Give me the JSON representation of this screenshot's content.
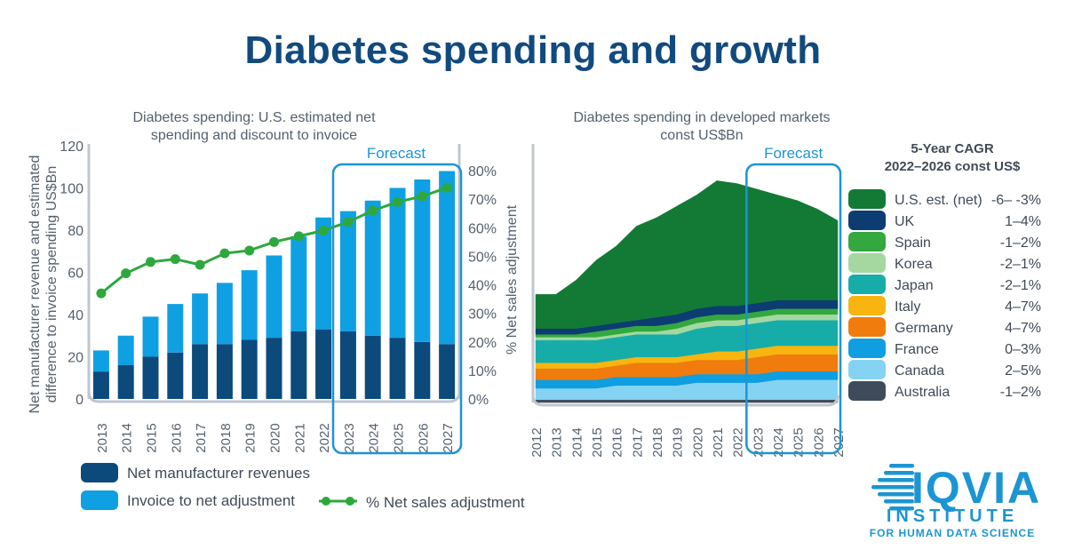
{
  "page": {
    "title": "Diabetes spending and growth"
  },
  "colors": {
    "title": "#114a7e",
    "axis": "#bfc6cd",
    "tick": "#55616d",
    "net": "#0c4a7c",
    "invoice": "#0fa0e3",
    "line": "#2ea83d",
    "forecast": "#1c95d3"
  },
  "chart_data": [
    {
      "type": "bar",
      "title": "Diabetes spending: U.S. estimated net spending and discount to invoice",
      "title_lines": [
        "Diabetes spending: U.S. estimated net",
        "spending and discount to invoice"
      ],
      "ylabel_lines": [
        "Net manufacturer revenue and estimated",
        "difference to invoice spending US$Bn"
      ],
      "y2label": "% Net sales adjustment",
      "categories": [
        "2013",
        "2014",
        "2015",
        "2016",
        "2017",
        "2018",
        "2019",
        "2020",
        "2021",
        "2022",
        "2023",
        "2024",
        "2025",
        "2026",
        "2027"
      ],
      "ylim": [
        0,
        120
      ],
      "yticks": [
        0,
        20,
        40,
        60,
        80,
        100,
        120
      ],
      "y2lim": [
        0,
        80
      ],
      "y2ticks": [
        "0%",
        "10%",
        "20%",
        "30%",
        "40%",
        "50%",
        "60%",
        "70%",
        "80%"
      ],
      "stacked": true,
      "series": [
        {
          "name": "Net manufacturer revenues",
          "values": [
            13,
            16,
            20,
            22,
            26,
            26,
            28,
            29,
            32,
            33,
            32,
            30,
            29,
            27,
            26
          ]
        },
        {
          "name": "Invoice to net adjustment",
          "values": [
            10,
            14,
            19,
            23,
            24,
            29,
            33,
            39,
            45,
            53,
            57,
            64,
            71,
            77,
            82
          ]
        }
      ],
      "line_series": {
        "name": "% Net sales adjustment",
        "values": [
          37,
          44,
          48,
          49,
          47,
          51,
          52,
          55,
          57,
          59,
          62,
          66,
          69,
          71,
          74
        ]
      },
      "forecast_label": "Forecast",
      "forecast_from": "2023",
      "legend": {
        "items": [
          {
            "label": "Net manufacturer revenues",
            "color": "#0c4a7c",
            "kind": "box"
          },
          {
            "label": "Invoice to net adjustment",
            "color": "#0fa0e3",
            "kind": "box"
          },
          {
            "label": "% Net sales adjustment",
            "color": "#2ea83d",
            "kind": "line"
          }
        ]
      }
    },
    {
      "type": "area",
      "title": "Diabetes spending in developed markets const US$Bn",
      "title_lines": [
        "Diabetes spending in developed markets",
        "const US$Bn"
      ],
      "x": [
        "2012",
        "2013",
        "2014",
        "2015",
        "2016",
        "2017",
        "2018",
        "2019",
        "2020",
        "2021",
        "2022",
        "2023",
        "2024",
        "2025",
        "2026",
        "2027"
      ],
      "ylim": [
        0,
        80
      ],
      "stacked": true,
      "series": [
        {
          "name": "Australia",
          "color": "#3f4b5a",
          "values": [
            1,
            1,
            1,
            1,
            1,
            1,
            1,
            1,
            1,
            1,
            1,
            1,
            1,
            1,
            1,
            1
          ]
        },
        {
          "name": "Canada",
          "color": "#85d3f3",
          "values": [
            4,
            4,
            4,
            4,
            5,
            5,
            5,
            5,
            6,
            6,
            6,
            6,
            7,
            7,
            7,
            7
          ]
        },
        {
          "name": "France",
          "color": "#0f9ee0",
          "values": [
            3,
            3,
            3,
            3,
            3,
            3,
            3,
            3,
            3,
            3,
            3,
            3,
            3,
            3,
            3,
            3
          ]
        },
        {
          "name": "Germany",
          "color": "#f07c0d",
          "values": [
            4,
            4,
            4,
            4,
            4,
            5,
            5,
            5,
            5,
            5,
            5,
            6,
            6,
            6,
            6,
            6
          ]
        },
        {
          "name": "Italy",
          "color": "#f8b50f",
          "values": [
            2,
            2,
            2,
            2,
            2,
            2,
            2,
            2,
            2,
            3,
            3,
            3,
            3,
            3,
            3,
            3
          ]
        },
        {
          "name": "Japan",
          "color": "#16ada9",
          "values": [
            8,
            8,
            8,
            8,
            8,
            8,
            8,
            8,
            9,
            9,
            9,
            9,
            9,
            9,
            9,
            9
          ]
        },
        {
          "name": "Korea",
          "color": "#a4d8a0",
          "values": [
            1,
            1,
            1,
            1,
            1,
            1,
            1,
            2,
            2,
            2,
            2,
            2,
            2,
            2,
            2,
            2
          ]
        },
        {
          "name": "Spain",
          "color": "#33a83f",
          "values": [
            1,
            1,
            1,
            2,
            2,
            2,
            2,
            2,
            2,
            2,
            2,
            2,
            2,
            2,
            2,
            2
          ]
        },
        {
          "name": "UK",
          "color": "#0c3c72",
          "values": [
            2,
            2,
            2,
            2,
            2,
            2,
            3,
            3,
            3,
            3,
            3,
            3,
            3,
            3,
            3,
            3
          ]
        },
        {
          "name": "U.S. est. (net)",
          "color": "#127a35",
          "values": [
            12,
            12,
            17,
            23,
            27,
            33,
            35,
            38,
            40,
            44,
            43,
            40,
            37,
            35,
            32,
            28
          ]
        }
      ],
      "forecast_label": "Forecast",
      "forecast_from": "2023"
    }
  ],
  "cagr": {
    "title_line1": "5-Year CAGR",
    "title_line2": "2022–2026 const US$",
    "rows": [
      {
        "market": "U.S. est. (net)",
        "value": "-6– -3%",
        "color": "#127a35"
      },
      {
        "market": "UK",
        "value": "1–4%",
        "color": "#0c3c72"
      },
      {
        "market": "Spain",
        "value": "-1–2%",
        "color": "#33a83f"
      },
      {
        "market": "Korea",
        "value": "-2–1%",
        "color": "#a4d8a0"
      },
      {
        "market": "Japan",
        "value": "-2–1%",
        "color": "#16ada9"
      },
      {
        "market": "Italy",
        "value": "4–7%",
        "color": "#f8b50f"
      },
      {
        "market": "Germany",
        "value": "4–7%",
        "color": "#f07c0d"
      },
      {
        "market": "France",
        "value": "0–3%",
        "color": "#0f9ee0"
      },
      {
        "market": "Canada",
        "value": "2–5%",
        "color": "#85d3f3"
      },
      {
        "market": "Australia",
        "value": "-1–2%",
        "color": "#3f4b5a"
      }
    ]
  },
  "logo": {
    "wordmark": "IQVIA",
    "line1": "INSTITUTE",
    "line2": "FOR HUMAN DATA SCIENCE",
    "color": "#1c95d3"
  }
}
